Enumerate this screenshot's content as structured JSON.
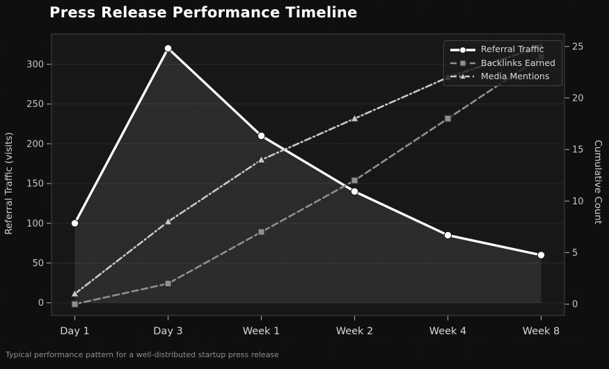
{
  "figure": {
    "title": "Press Release Performance Timeline",
    "caption": "Typical performance pattern for a well-distributed startup press release",
    "background": "#0c0c0c",
    "plot_background": "#151515"
  },
  "chart_data": {
    "type": "line",
    "title": "Press Release Performance Timeline",
    "categories": [
      "Day 1",
      "Day 3",
      "Week 1",
      "Week 2",
      "Week 4",
      "Week 8"
    ],
    "series": [
      {
        "name": "Referral Traffic",
        "axis": "left",
        "values": [
          100,
          320,
          210,
          140,
          85,
          60
        ],
        "color": "#ffffff",
        "marker": "circle",
        "line_style": "solid",
        "fill_to_zero": true
      },
      {
        "name": "Backlinks Earned",
        "axis": "right",
        "values": [
          0,
          2,
          7,
          12,
          18,
          24
        ],
        "color": "#8f8f8f",
        "marker": "square",
        "line_style": "dashed",
        "fill_to_zero": false
      },
      {
        "name": "Media Mentions",
        "axis": "right",
        "values": [
          1,
          8,
          14,
          18,
          22,
          25
        ],
        "color": "#c9c9c9",
        "marker": "triangle",
        "line_style": "dashdot",
        "fill_to_zero": false
      }
    ],
    "left_axis": {
      "label": "Referral Traffic (visits)",
      "ticks": [
        0,
        50,
        100,
        150,
        200,
        250,
        300
      ],
      "range": [
        -16,
        338
      ]
    },
    "right_axis": {
      "label": "Cumulative Count",
      "ticks": [
        0,
        5,
        10,
        15,
        20,
        25
      ],
      "range": [
        -1.1,
        26.2
      ]
    },
    "grid": "horizontal",
    "legend_position": "upper right"
  }
}
